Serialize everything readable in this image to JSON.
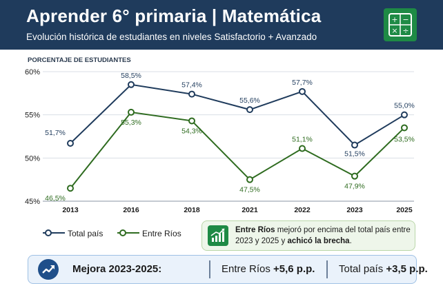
{
  "header": {
    "title": "Aprender 6° primaria | Matemática",
    "subtitle": "Evolución histórica de estudiantes en niveles Satisfactorio + Avanzado"
  },
  "chart_data": {
    "type": "line",
    "ylabel": "PORCENTAJE DE ESTUDIANTES",
    "ylim": [
      45,
      60
    ],
    "yticks": [
      "45%",
      "50%",
      "55%",
      "60%"
    ],
    "categories": [
      "2013",
      "2016",
      "2018",
      "2021",
      "2022",
      "2023",
      "2025"
    ],
    "grid": true,
    "legend_position": "bottom-left",
    "series": [
      {
        "name": "Total país",
        "color": "#1f3b5c",
        "values": [
          51.7,
          58.5,
          57.4,
          55.6,
          57.7,
          51.5,
          55.0
        ],
        "labels": [
          "51,7%",
          "58,5%",
          "57,4%",
          "55,6%",
          "57,7%",
          "51,5%",
          "55,0%"
        ]
      },
      {
        "name": "Entre Ríos",
        "color": "#2e6b1f",
        "values": [
          46.5,
          55.3,
          54.3,
          47.5,
          51.1,
          47.9,
          53.5
        ],
        "labels": [
          "46,5%",
          "55,3%",
          "54,3%",
          "47,5%",
          "51,1%",
          "47,9%",
          "53,5%"
        ]
      }
    ]
  },
  "callout": {
    "strong": "Entre Ríos",
    "text1": " mejoró por encima del total país entre 2023 y 2025 y ",
    "strong2": "achicó la brecha",
    "text2": "."
  },
  "banner": {
    "title": "Mejora 2023-2025:",
    "er_label": "Entre Ríos ",
    "er_value": "+5,6 p.p.",
    "total_label": "Total país ",
    "total_value": "+3,5 p.p."
  }
}
